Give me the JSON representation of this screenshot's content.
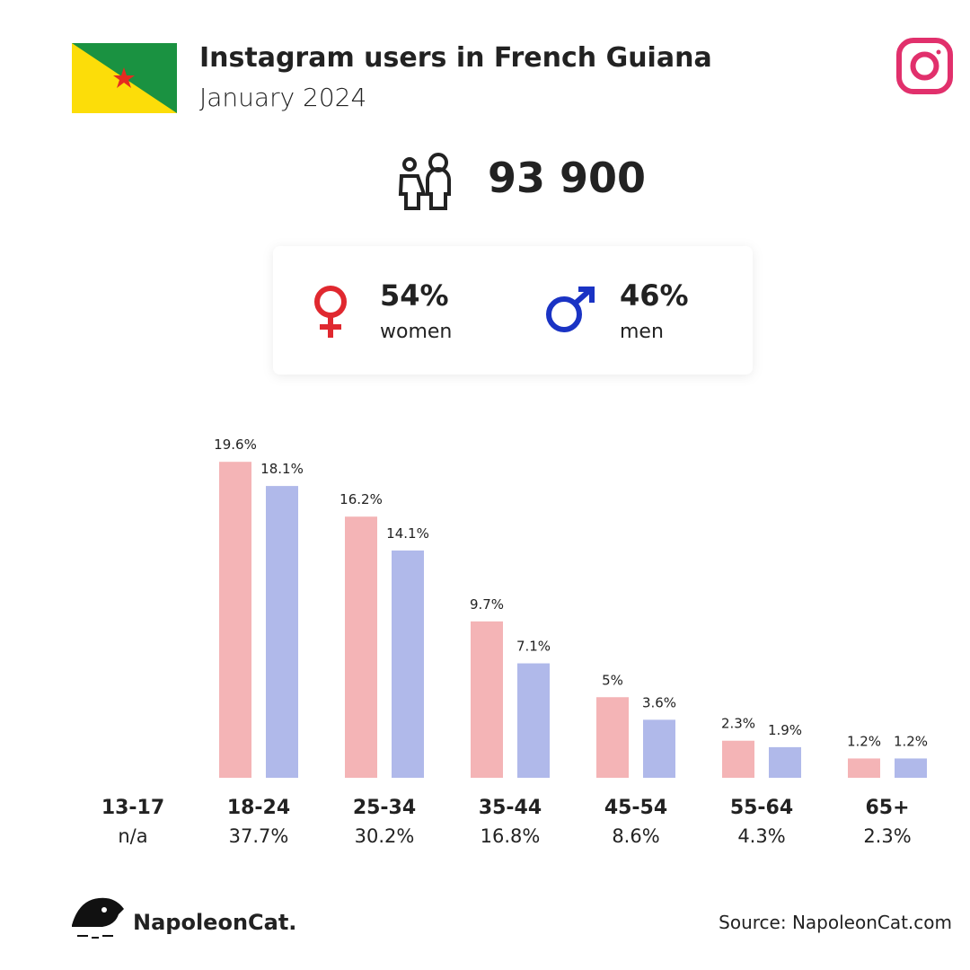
{
  "header": {
    "title": "Instagram users in French Guiana",
    "subtitle": "January 2024"
  },
  "total_users": "93 900",
  "gender": {
    "women": {
      "percent": "54%",
      "label": "women"
    },
    "men": {
      "percent": "46%",
      "label": "men"
    }
  },
  "chart_data": {
    "type": "bar",
    "categories": [
      "13-17",
      "18-24",
      "25-34",
      "35-44",
      "45-54",
      "55-64",
      "65+"
    ],
    "group_totals": [
      "n/a",
      "37.7%",
      "30.2%",
      "16.8%",
      "8.6%",
      "4.3%",
      "2.3%"
    ],
    "series": [
      {
        "color": "#f4b4b6",
        "values": [
          null,
          19.6,
          16.2,
          9.7,
          5,
          2.3,
          1.2
        ],
        "value_labels": [
          null,
          "19.6%",
          "16.2%",
          "9.7%",
          "5%",
          "2.3%",
          "1.2%"
        ]
      },
      {
        "color": "#b0b9ea",
        "values": [
          null,
          18.1,
          14.1,
          7.1,
          3.6,
          1.9,
          1.2
        ],
        "value_labels": [
          null,
          "18.1%",
          "14.1%",
          "7.1%",
          "3.6%",
          "1.9%",
          "1.2%"
        ]
      }
    ],
    "ylim": [
      0,
      20
    ]
  },
  "footer": {
    "brand": "NapoleonCat.",
    "source": "Source: NapoleonCat.com"
  }
}
